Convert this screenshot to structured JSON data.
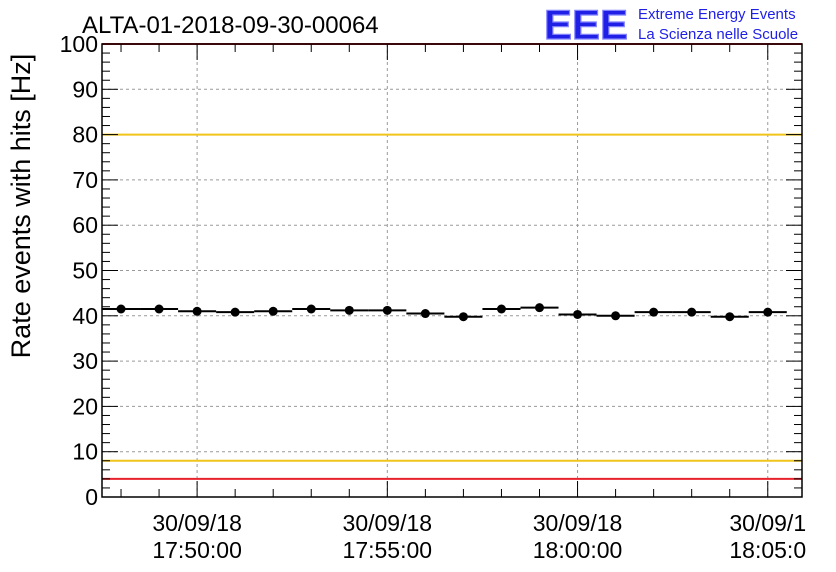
{
  "chart_data": {
    "type": "scatter",
    "title": "ALTA-01-2018-09-30-00064",
    "xlabel": "",
    "ylabel": "Rate events with hits [Hz]",
    "ylim": [
      0,
      100
    ],
    "y_ticks": [
      "0",
      "10",
      "20",
      "30",
      "40",
      "50",
      "60",
      "70",
      "80",
      "90",
      "100"
    ],
    "x_ticks": [
      {
        "t": 2,
        "date": "30/09/18",
        "time": "17:50:00"
      },
      {
        "t": 7,
        "date": "30/09/18",
        "time": "17:55:00"
      },
      {
        "t": 12,
        "date": "30/09/18",
        "time": "18:00:00"
      },
      {
        "t": 17,
        "date": "30/09/1",
        "time": "18:05:0"
      }
    ],
    "xlim": [
      -0.5,
      17.9
    ],
    "grid": true,
    "series": [
      {
        "name": "rate",
        "x": [
          0,
          1,
          2,
          3,
          4,
          5,
          6,
          7,
          8,
          9,
          10,
          11,
          12,
          13,
          14,
          15,
          16,
          17
        ],
        "values": [
          41.5,
          41.5,
          41.0,
          40.8,
          41.0,
          41.5,
          41.2,
          41.2,
          40.5,
          39.8,
          41.5,
          41.8,
          40.3,
          40.0,
          40.8,
          40.8,
          39.8,
          40.8
        ],
        "xerr": 0.5
      }
    ],
    "reference_lines": [
      {
        "y": 100,
        "color": "#e8222d"
      },
      {
        "y": 80,
        "color": "#f0c419"
      },
      {
        "y": 8,
        "color": "#f0c419"
      },
      {
        "y": 4,
        "color": "#e8222d"
      }
    ]
  },
  "logo": {
    "letters": "EEE",
    "line1": "Extreme Energy Events",
    "line2": "La Scienza nelle Scuole",
    "color": "#1f1fe6"
  }
}
